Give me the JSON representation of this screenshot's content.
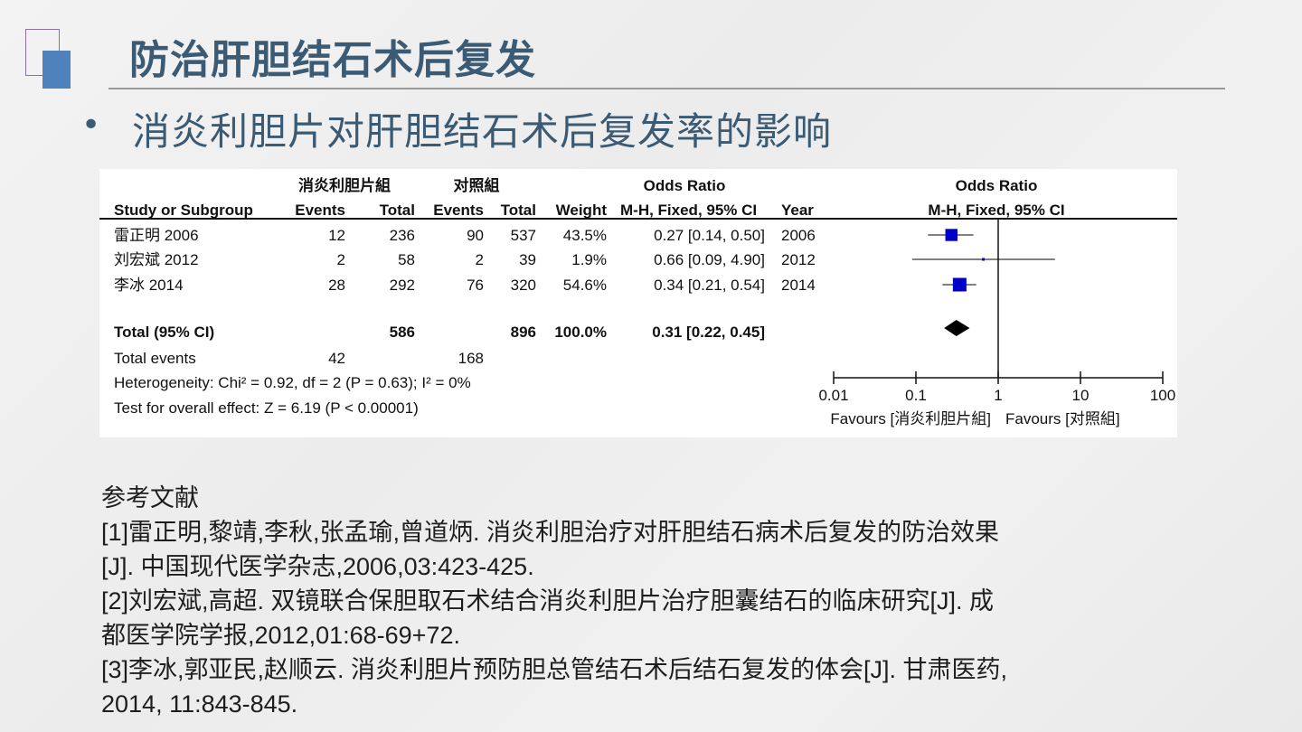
{
  "slide": {
    "title": "防治肝胆结石术后复发",
    "bullet": "•",
    "subtitle": "消炎利胆片对肝胆结石术后复发率的影响"
  },
  "chart_data": {
    "type": "forest",
    "group_labels": {
      "experimental": "消炎利胆片組",
      "control": "对照組",
      "effect": "Odds Ratio",
      "plot": "Odds Ratio"
    },
    "columns": [
      "Study or Subgroup",
      "Events",
      "Total",
      "Events",
      "Total",
      "Weight",
      "M-H, Fixed, 95% CI",
      "Year"
    ],
    "plot_header": "M-H, Fixed, 95% CI",
    "studies": [
      {
        "name": "雷正明 2006",
        "exp_events": "12",
        "exp_total": "236",
        "ctl_events": "90",
        "ctl_total": "537",
        "weight": "43.5%",
        "ci_text": "0.27 [0.14, 0.50]",
        "year": "2006",
        "or": 0.27,
        "lo": 0.14,
        "hi": 0.5,
        "w": 43.5
      },
      {
        "name": "刘宏斌 2012",
        "exp_events": "2",
        "exp_total": "58",
        "ctl_events": "2",
        "ctl_total": "39",
        "weight": "1.9%",
        "ci_text": "0.66 [0.09, 4.90]",
        "year": "2012",
        "or": 0.66,
        "lo": 0.09,
        "hi": 4.9,
        "w": 1.9
      },
      {
        "name": "李冰 2014",
        "exp_events": "28",
        "exp_total": "292",
        "ctl_events": "76",
        "ctl_total": "320",
        "weight": "54.6%",
        "ci_text": "0.34 [0.21, 0.54]",
        "year": "2014",
        "or": 0.34,
        "lo": 0.21,
        "hi": 0.54,
        "w": 54.6
      }
    ],
    "total": {
      "label": "Total (95% CI)",
      "exp_total": "586",
      "ctl_total": "896",
      "weight": "100.0%",
      "ci_text": "0.31 [0.22, 0.45]",
      "or": 0.31,
      "lo": 0.22,
      "hi": 0.45
    },
    "total_events": {
      "label": "Total events",
      "exp": "42",
      "ctl": "168"
    },
    "heterogeneity": "Heterogeneity: Chi² = 0.92, df = 2 (P = 0.63); I² = 0%",
    "overall_effect": "Test for overall effect: Z = 6.19 (P < 0.00001)",
    "x_axis": {
      "scale": "log",
      "range": [
        0.01,
        100
      ],
      "ticks": [
        "0.01",
        "0.1",
        "1",
        "10",
        "100"
      ]
    },
    "favours_left": "Favours [消炎利胆片組]",
    "favours_right": "Favours [对照組]",
    "colors": {
      "study_marker": "#0000c8",
      "total_marker": "#000000"
    }
  },
  "references": {
    "heading": "参考文献",
    "lines": [
      "[1]雷正明,黎靖,李秋,张孟瑜,曾道炳. 消炎利胆治疗对肝胆结石病术后复发的防治效果",
      "[J]. 中国现代医学杂志,2006,03:423-425.",
      "[2]刘宏斌,高超. 双镜联合保胆取石术结合消炎利胆片治疗胆囊结石的临床研究[J]. 成",
      "都医学院学报,2012,01:68-69+72.",
      "[3]李冰,郭亚民,赵顺云. 消炎利胆片预防胆总管结石术后结石复发的体会[J]. 甘肃医药,",
      "2014, 11:843-845."
    ]
  }
}
